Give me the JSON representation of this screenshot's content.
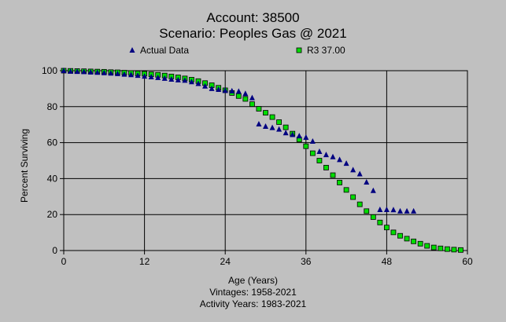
{
  "chart_data": {
    "type": "scatter",
    "title": "Account: 38500",
    "subtitle": "Scenario: Peoples Gas @ 2021",
    "xlabel": "Age (Years)",
    "ylabel": "Percent Surviving",
    "notes": [
      "Vintages: 1958-2021",
      "Activity Years: 1983-2021"
    ],
    "xlim": [
      0,
      60
    ],
    "ylim": [
      0,
      100
    ],
    "xticks": [
      0,
      12,
      24,
      36,
      48,
      60
    ],
    "yticks": [
      0,
      20,
      40,
      60,
      80,
      100
    ],
    "grid": true,
    "legend_position": "top",
    "series": [
      {
        "name": "Actual Data",
        "marker": "triangle",
        "color": "#000080",
        "x": [
          0,
          1,
          2,
          3,
          4,
          5,
          6,
          7,
          8,
          9,
          10,
          11,
          12,
          13,
          14,
          15,
          16,
          17,
          18,
          19,
          20,
          21,
          22,
          23,
          24,
          25,
          26,
          27,
          28,
          29,
          30,
          31,
          32,
          33,
          34,
          35,
          36,
          37,
          38,
          39,
          40,
          41,
          42,
          43,
          44,
          45,
          46,
          47,
          48,
          49,
          50,
          51,
          52
        ],
        "y": [
          100,
          99.6,
          99.5,
          99.4,
          99.2,
          99,
          98.8,
          98.6,
          98.3,
          98,
          97.7,
          97.3,
          96.9,
          96.5,
          96.1,
          95.7,
          95.2,
          94.8,
          94.6,
          93.8,
          92.8,
          91.4,
          90,
          89.5,
          89,
          88.7,
          88.5,
          87.2,
          84.9,
          70.3,
          69,
          68.3,
          67.4,
          65.4,
          64.4,
          63.7,
          62.9,
          60.7,
          55,
          53.2,
          52.1,
          50.5,
          48.4,
          44.8,
          42.6,
          38,
          33.3,
          22.7,
          22.7,
          22.6,
          21.9,
          21.9,
          21.9
        ]
      },
      {
        "name": "R3 37.00",
        "marker": "square",
        "color": "#00dd00",
        "x": [
          0,
          1,
          2,
          3,
          4,
          5,
          6,
          7,
          8,
          9,
          10,
          11,
          12,
          13,
          14,
          15,
          16,
          17,
          18,
          19,
          20,
          21,
          22,
          23,
          24,
          25,
          26,
          27,
          28,
          29,
          30,
          31,
          32,
          33,
          34,
          35,
          36,
          37,
          38,
          39,
          40,
          41,
          42,
          43,
          44,
          45,
          46,
          47,
          48,
          49,
          50,
          51,
          52,
          53,
          54,
          55,
          56,
          57,
          58,
          59
        ],
        "y": [
          100,
          99.9,
          99.8,
          99.7,
          99.6,
          99.5,
          99.4,
          99.2,
          99.1,
          98.9,
          98.7,
          98.5,
          98.3,
          98,
          97.7,
          97.3,
          96.8,
          96.3,
          95.7,
          95,
          94.2,
          93.1,
          91.9,
          90.5,
          89.1,
          87.6,
          85.9,
          84.3,
          81.4,
          78.8,
          76.6,
          74.2,
          71.4,
          68.5,
          65,
          61.7,
          58,
          54.1,
          50,
          46.1,
          41.9,
          37.8,
          33.7,
          29.7,
          25.7,
          21.9,
          18.6,
          15.6,
          12.8,
          10.1,
          8.2,
          6.6,
          5.1,
          3.8,
          2.6,
          1.7,
          1.2,
          0.8,
          0.5,
          0.3
        ]
      }
    ]
  }
}
